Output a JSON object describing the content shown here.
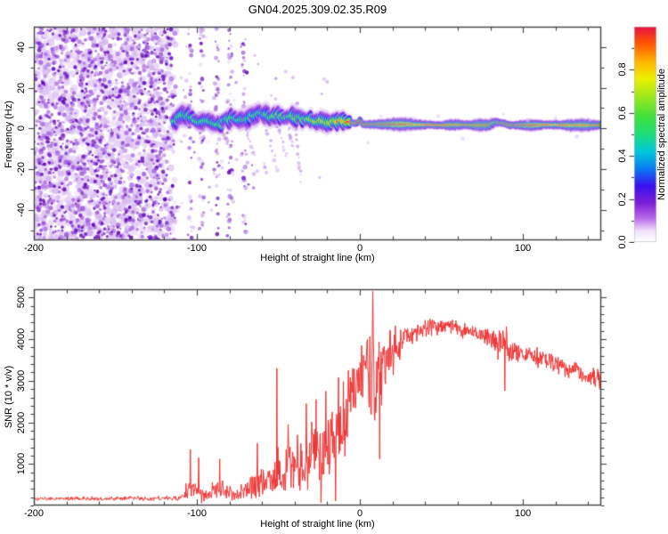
{
  "title": "GN04.2025.309.02.35.R09",
  "frame_color": "#444444",
  "colorbar": {
    "label": "Normalized spectral amplitude",
    "tick_labels": [
      "0.0",
      "0.2",
      "0.4",
      "0.6",
      "0.8"
    ],
    "tick_values": [
      0,
      0.2,
      0.4,
      0.6,
      0.8
    ],
    "minor_step": 0.1,
    "range": [
      0,
      1
    ]
  },
  "chart_data": [
    {
      "type": "heatmap",
      "title": "",
      "xlabel": "Height of straight line (km)",
      "ylabel": "Frequency (Hz)",
      "xlim": [
        -200,
        148
      ],
      "ylim": [
        -55,
        50
      ],
      "x_major_ticks": [
        -200,
        -100,
        0,
        100
      ],
      "x_minor_step": 20,
      "y_major_ticks": [
        40,
        20,
        0,
        -20,
        -40
      ],
      "y_minor_step": 10,
      "colormap": [
        [
          0,
          "#ffffff"
        ],
        [
          0.05,
          "#efe2fb"
        ],
        [
          0.11,
          "#b866ec"
        ],
        [
          0.18,
          "#7d1fd6"
        ],
        [
          0.26,
          "#3812ee"
        ],
        [
          0.34,
          "#0b7cf2"
        ],
        [
          0.42,
          "#00c8dc"
        ],
        [
          0.5,
          "#1edd7a"
        ],
        [
          0.58,
          "#3fe03f"
        ],
        [
          0.68,
          "#a0e81c"
        ],
        [
          0.76,
          "#eef000"
        ],
        [
          0.84,
          "#ffb400"
        ],
        [
          0.92,
          "#ff5a00"
        ],
        [
          1,
          "#e8123f"
        ]
      ],
      "noise_region": {
        "x_range": [
          -200,
          -113
        ],
        "fade_start": -121,
        "light_colors": [
          "#ead9f8",
          "#ddc2f4",
          "#d0b0ef"
        ],
        "mid_colors": [
          "#a86ae0",
          "#9850d8"
        ],
        "dark_colors": [
          "#7a22cc",
          "#6610bb",
          "#5c0bb0"
        ]
      },
      "sparse_columns": [
        -104,
        -97,
        -88,
        -80,
        -71
      ],
      "sparse_x_range": [
        -113,
        -62
      ],
      "band_ridge": [
        [
          -114,
          3.5,
          0.45
        ],
        [
          -110,
          6,
          0.55
        ],
        [
          -106,
          6.5,
          0.5
        ],
        [
          -102,
          4.5,
          0.55
        ],
        [
          -98,
          3,
          0.5
        ],
        [
          -94,
          4,
          0.55
        ],
        [
          -90,
          2.5,
          0.5
        ],
        [
          -86,
          2,
          0.55
        ],
        [
          -82,
          4,
          0.5
        ],
        [
          -78,
          5.5,
          0.55
        ],
        [
          -74,
          3.5,
          0.5
        ],
        [
          -70,
          5,
          0.55
        ],
        [
          -66,
          6.5,
          0.5
        ],
        [
          -62,
          7.5,
          0.55
        ],
        [
          -58,
          6.5,
          0.5
        ],
        [
          -54,
          5.5,
          0.55
        ],
        [
          -50,
          6.5,
          0.6
        ],
        [
          -46,
          5.5,
          0.55
        ],
        [
          -42,
          6,
          0.6
        ],
        [
          -38,
          5,
          0.6
        ],
        [
          -34,
          4.5,
          0.65
        ],
        [
          -30,
          4,
          0.65
        ],
        [
          -26,
          3.5,
          0.7
        ],
        [
          -22,
          3,
          0.75
        ],
        [
          -18,
          3,
          0.8
        ],
        [
          -14,
          3.5,
          0.8
        ],
        [
          -10,
          4.5,
          0.9
        ],
        [
          -6,
          3,
          0.95
        ],
        [
          -2,
          2.5,
          1
        ],
        [
          0,
          4,
          1
        ],
        [
          2,
          2,
          1
        ],
        [
          10,
          2,
          1
        ],
        [
          20,
          2,
          1
        ],
        [
          30,
          2,
          0.95
        ],
        [
          36,
          1.8,
          0.85
        ],
        [
          42,
          1.8,
          1
        ],
        [
          50,
          1.6,
          1
        ],
        [
          58,
          1.8,
          0.95
        ],
        [
          64,
          1.8,
          0.9
        ],
        [
          70,
          1.6,
          1
        ],
        [
          78,
          1.6,
          1
        ],
        [
          84,
          3,
          0.8
        ],
        [
          88,
          2.5,
          0.85
        ],
        [
          92,
          1.6,
          1
        ],
        [
          100,
          1.6,
          1
        ],
        [
          108,
          1.6,
          0.95
        ],
        [
          114,
          1.8,
          1
        ],
        [
          120,
          1.8,
          0.9
        ],
        [
          126,
          1.6,
          1
        ],
        [
          132,
          1.6,
          0.95
        ],
        [
          138,
          1.6,
          1
        ],
        [
          144,
          1.6,
          0.95
        ],
        [
          148,
          1.6,
          1
        ]
      ],
      "band_haze_hz_left": 4.2,
      "band_haze_hz_right": 1.7,
      "right_haze_bumps": [
        {
          "x": 25,
          "w": 12,
          "h": 1.4
        },
        {
          "x": 57,
          "w": 6,
          "h": 0.9
        },
        {
          "x": 75,
          "w": 8,
          "h": 1.1
        },
        {
          "x": 105,
          "w": 8,
          "h": 0.9
        },
        {
          "x": 135,
          "w": 12,
          "h": 1.3
        }
      ],
      "tails": [
        {
          "x": -86,
          "f1": -9,
          "len": 6
        },
        {
          "x": -72,
          "f1": -13,
          "len": 8
        },
        {
          "x": -60,
          "f1": -21,
          "len": 10
        },
        {
          "x": -52,
          "f1": -14,
          "len": 7
        },
        {
          "x": -46,
          "f1": -9,
          "len": 5
        },
        {
          "x": -40,
          "f1": -26,
          "len": 4
        }
      ],
      "stray_dots": [
        [
          5,
          -7
        ],
        [
          13,
          6
        ],
        [
          33,
          5
        ],
        [
          48,
          6
        ],
        [
          63,
          -5
        ],
        [
          80,
          5
        ],
        [
          88,
          7
        ],
        [
          103,
          4
        ],
        [
          120,
          5
        ],
        [
          133,
          -4
        ],
        [
          141,
          4
        ]
      ]
    },
    {
      "type": "line",
      "title": "",
      "xlabel": "Height of straight line (km)",
      "ylabel": "SNR (10 * v/v)",
      "color": "#ee3333",
      "xlim": [
        -200,
        148
      ],
      "ylim": [
        0,
        5200
      ],
      "x_major_ticks": [
        -200,
        -100,
        0,
        100
      ],
      "x_minor_step": 20,
      "y_major_ticks": [
        1000,
        2000,
        3000,
        4000,
        5000
      ],
      "y_minor_step": 200,
      "envelope": [
        [
          -200,
          160,
          55
        ],
        [
          -160,
          165,
          55
        ],
        [
          -130,
          168,
          60
        ],
        [
          -115,
          175,
          65
        ],
        [
          -109,
          190,
          90
        ],
        [
          -105,
          380,
          380
        ],
        [
          -101,
          360,
          340
        ],
        [
          -97,
          260,
          200
        ],
        [
          -93,
          230,
          150
        ],
        [
          -89,
          400,
          330
        ],
        [
          -85,
          380,
          320
        ],
        [
          -81,
          300,
          220
        ],
        [
          -77,
          280,
          210
        ],
        [
          -73,
          320,
          250
        ],
        [
          -69,
          350,
          280
        ],
        [
          -65,
          430,
          360
        ],
        [
          -61,
          540,
          460
        ],
        [
          -57,
          500,
          420
        ],
        [
          -53,
          650,
          600
        ],
        [
          -49,
          780,
          720
        ],
        [
          -45,
          850,
          780
        ],
        [
          -41,
          930,
          840
        ],
        [
          -37,
          1000,
          890
        ],
        [
          -33,
          1120,
          950
        ],
        [
          -29,
          1230,
          1000
        ],
        [
          -25,
          1300,
          1050
        ],
        [
          -21,
          1400,
          1100
        ],
        [
          -17,
          1520,
          1180
        ],
        [
          -13,
          1700,
          1280
        ],
        [
          -9,
          2050,
          1150
        ],
        [
          -5,
          2600,
          800
        ],
        [
          -1,
          3000,
          650
        ],
        [
          3,
          3250,
          950
        ],
        [
          7,
          3200,
          1650
        ],
        [
          11,
          3250,
          1350
        ],
        [
          15,
          3450,
          950
        ],
        [
          19,
          3700,
          700
        ],
        [
          23,
          3900,
          520
        ],
        [
          27,
          4050,
          400
        ],
        [
          31,
          4150,
          320
        ],
        [
          35,
          4200,
          280
        ],
        [
          40,
          4250,
          260
        ],
        [
          46,
          4290,
          260
        ],
        [
          52,
          4300,
          250
        ],
        [
          58,
          4260,
          260
        ],
        [
          64,
          4200,
          260
        ],
        [
          70,
          4130,
          255
        ],
        [
          76,
          4060,
          285
        ],
        [
          82,
          3960,
          330
        ],
        [
          86,
          3870,
          450
        ],
        [
          90,
          3770,
          560
        ],
        [
          94,
          3700,
          360
        ],
        [
          100,
          3660,
          310
        ],
        [
          106,
          3600,
          290
        ],
        [
          112,
          3520,
          285
        ],
        [
          118,
          3450,
          300
        ],
        [
          124,
          3380,
          300
        ],
        [
          130,
          3300,
          305
        ],
        [
          136,
          3210,
          305
        ],
        [
          142,
          3110,
          300
        ],
        [
          148,
          3040,
          300
        ]
      ],
      "events": [
        [
          -104,
          1350
        ],
        [
          -99,
          1150
        ],
        [
          -97,
          60
        ],
        [
          -86,
          1120
        ],
        [
          -63,
          1500
        ],
        [
          -51,
          3300
        ],
        [
          -44,
          1950
        ],
        [
          -33,
          2450
        ],
        [
          -27,
          2550
        ],
        [
          -24,
          70
        ],
        [
          -21,
          2750
        ],
        [
          -15,
          110
        ],
        [
          -13,
          3080
        ],
        [
          -10,
          2980
        ],
        [
          -7,
          3250
        ],
        [
          8,
          5150
        ],
        [
          9,
          2050
        ],
        [
          12,
          1120
        ],
        [
          89,
          2760
        ]
      ]
    }
  ]
}
